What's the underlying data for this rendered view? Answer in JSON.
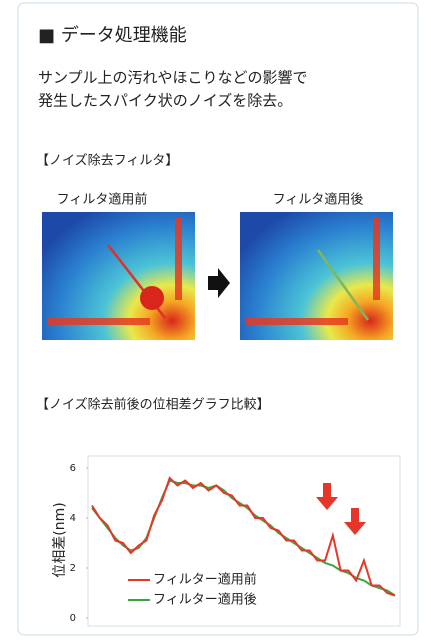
{
  "header": {
    "title": "■ データ処理機能"
  },
  "description": [
    "サンプル上の汚れやほこりなどの影響で",
    "発生したスパイク状のノイズを除去。"
  ],
  "filter": {
    "heading": "【ノイズ除去フィルタ】",
    "before_label": "フィルタ適用前",
    "after_label": "フィルタ適用後"
  },
  "chart_data": {
    "type": "line",
    "title": "【ノイズ除去前後の位相差グラフ比較】",
    "y_label": "位相差(nm)",
    "ylim": [
      0,
      6
    ],
    "yticks": [
      0,
      2,
      4,
      6
    ],
    "legend": "lower left",
    "series": [
      {
        "name": "フィルター適用前",
        "color": "#e8352a",
        "values": [
          4.5,
          4.0,
          3.7,
          3.1,
          3.0,
          2.6,
          2.9,
          3.1,
          4.1,
          4.7,
          5.6,
          5.3,
          5.5,
          5.2,
          5.4,
          5.1,
          5.3,
          5.0,
          4.9,
          4.5,
          4.5,
          4.0,
          4.0,
          3.6,
          3.5,
          3.1,
          3.1,
          2.7,
          2.7,
          2.3,
          2.3,
          3.3,
          1.9,
          1.9,
          1.5,
          2.3,
          1.3,
          1.3,
          1.0,
          0.9
        ]
      },
      {
        "name": "フィルター適用後",
        "color": "#3aa63a",
        "values": [
          4.4,
          4.0,
          3.6,
          3.2,
          2.9,
          2.7,
          2.8,
          3.2,
          4.0,
          4.8,
          5.5,
          5.4,
          5.4,
          5.3,
          5.3,
          5.2,
          5.3,
          5.1,
          4.8,
          4.6,
          4.4,
          4.1,
          3.9,
          3.7,
          3.4,
          3.2,
          3.0,
          2.8,
          2.6,
          2.4,
          2.2,
          2.1,
          1.9,
          1.8,
          1.6,
          1.5,
          1.3,
          1.2,
          1.1,
          0.9
        ]
      }
    ]
  }
}
